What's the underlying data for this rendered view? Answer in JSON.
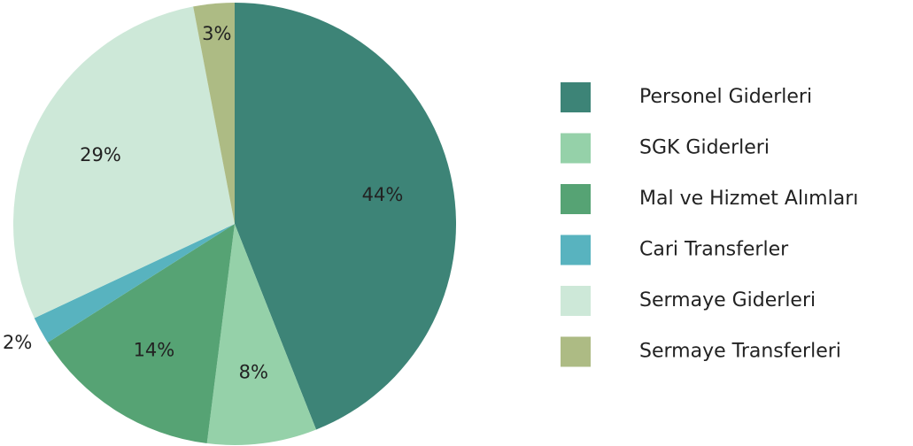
{
  "chart_data": {
    "type": "pie",
    "categories": [
      "Personel Giderleri",
      "SGK Giderleri",
      "Mal ve Hizmet Alımları",
      "Cari Transferler",
      "Sermaye Giderleri",
      "Sermaye Transferleri"
    ],
    "values": [
      44,
      8,
      14,
      2,
      29,
      3
    ],
    "value_labels": [
      "44%",
      "8%",
      "14%",
      "2%",
      "29%",
      "3%"
    ],
    "colors": [
      "#3d8477",
      "#95d1a9",
      "#56a374",
      "#58b3bf",
      "#cde8d8",
      "#adbb84"
    ],
    "legend": "right"
  }
}
